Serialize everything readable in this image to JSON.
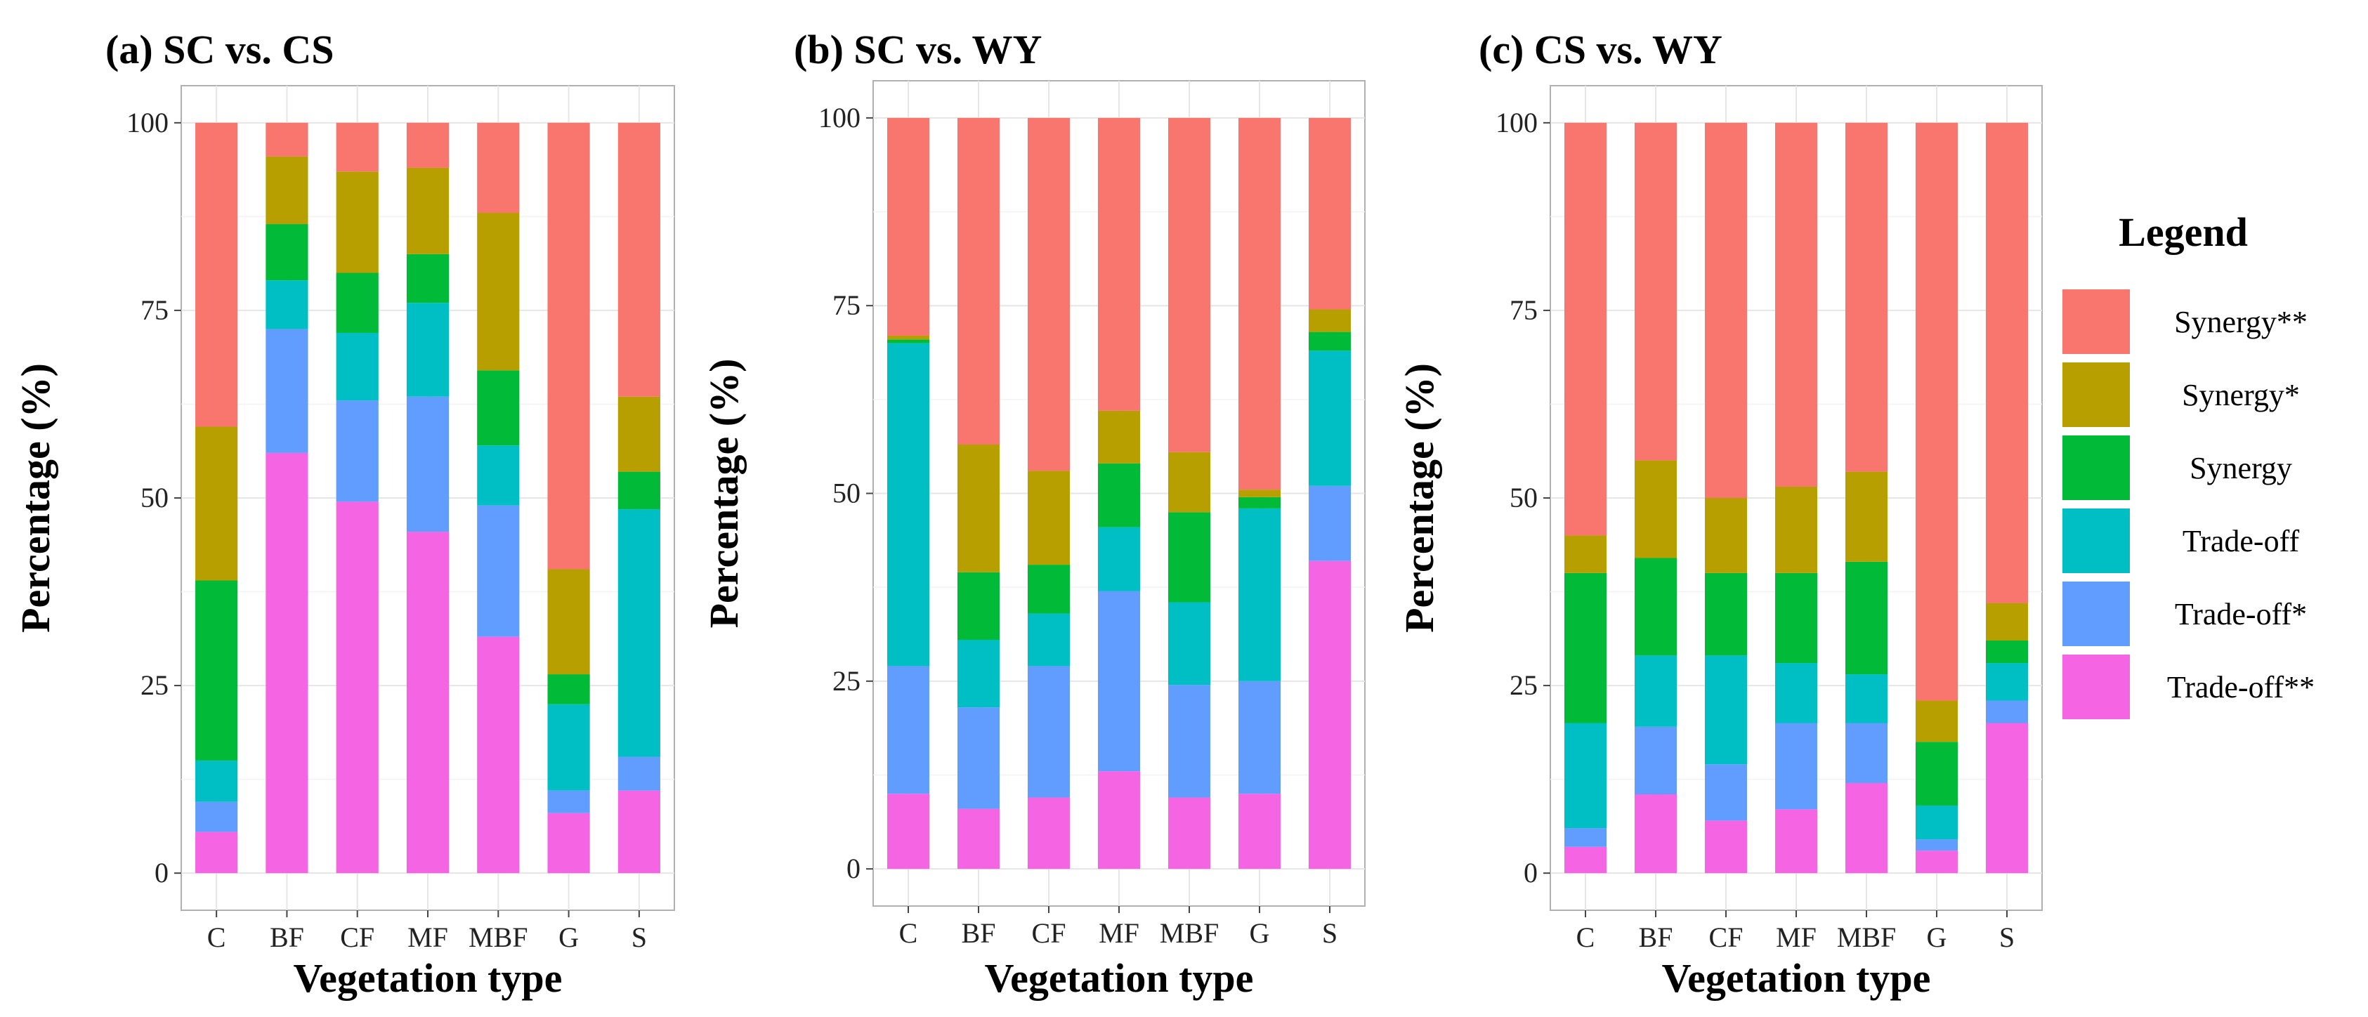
{
  "legend": {
    "title": "Legend",
    "entries": [
      "Synergy**",
      "Synergy*",
      "Synergy",
      "Trade-off",
      "Trade-off*",
      "Trade-off**"
    ]
  },
  "colors": {
    "Trade-off**": "#F564E3",
    "Trade-off*": "#619CFF",
    "Trade-off": "#00BFC4",
    "Synergy": "#00BA38",
    "Synergy*": "#B79F00",
    "Synergy**": "#F8766D"
  },
  "chart_data": [
    {
      "type": "bar",
      "stacked": true,
      "title": "(a) SC vs. CS",
      "xlabel": "Vegetation type",
      "ylabel": "Percentage (%)",
      "ylim": [
        0,
        100
      ],
      "yticks": [
        0,
        25,
        50,
        75,
        100
      ],
      "categories": [
        "C",
        "BF",
        "CF",
        "MF",
        "MBF",
        "G",
        "S"
      ],
      "series": [
        {
          "name": "Trade-off**",
          "values": [
            5.5,
            56,
            49.5,
            45.5,
            31.5,
            8,
            11
          ]
        },
        {
          "name": "Trade-off*",
          "values": [
            4,
            16.5,
            13.5,
            18,
            17.5,
            3,
            4.5
          ]
        },
        {
          "name": "Trade-off",
          "values": [
            5.5,
            6.5,
            9,
            12.5,
            8,
            11.5,
            33
          ]
        },
        {
          "name": "Synergy",
          "values": [
            24,
            7.5,
            8,
            6.5,
            10,
            4,
            5
          ]
        },
        {
          "name": "Synergy*",
          "values": [
            20.5,
            9,
            13.5,
            11.5,
            21,
            14,
            10
          ]
        },
        {
          "name": "Synergy**",
          "values": [
            40.5,
            4.5,
            6.5,
            6,
            12,
            59.5,
            36.5
          ]
        }
      ]
    },
    {
      "type": "bar",
      "stacked": true,
      "title": "(b) SC vs. WY",
      "xlabel": "Vegetation type",
      "ylabel": "Percentage (%)",
      "ylim": [
        0,
        100
      ],
      "yticks": [
        0,
        25,
        50,
        75,
        100
      ],
      "categories": [
        "C",
        "BF",
        "CF",
        "MF",
        "MBF",
        "G",
        "S"
      ],
      "series": [
        {
          "name": "Trade-off**",
          "values": [
            10,
            8,
            9.5,
            13,
            9.5,
            10,
            41
          ]
        },
        {
          "name": "Trade-off*",
          "values": [
            17,
            13.5,
            17.5,
            24,
            15,
            15,
            10
          ]
        },
        {
          "name": "Trade-off",
          "values": [
            43,
            9,
            7,
            8.5,
            11,
            23,
            18
          ]
        },
        {
          "name": "Synergy",
          "values": [
            0.5,
            9,
            6.5,
            8.5,
            12,
            1.5,
            2.5
          ]
        },
        {
          "name": "Synergy*",
          "values": [
            0.5,
            17,
            12.5,
            7,
            8,
            1,
            3
          ]
        },
        {
          "name": "Synergy**",
          "values": [
            29,
            43.5,
            47,
            39,
            44.5,
            49.5,
            25.5
          ]
        }
      ]
    },
    {
      "type": "bar",
      "stacked": true,
      "title": "(c) CS vs. WY",
      "xlabel": "Vegetation type",
      "ylabel": "Percentage (%)",
      "ylim": [
        0,
        100
      ],
      "yticks": [
        0,
        25,
        50,
        75,
        100
      ],
      "categories": [
        "C",
        "BF",
        "CF",
        "MF",
        "MBF",
        "G",
        "S"
      ],
      "series": [
        {
          "name": "Trade-off**",
          "values": [
            3.5,
            10.5,
            7,
            8.5,
            12,
            3,
            20
          ]
        },
        {
          "name": "Trade-off*",
          "values": [
            2.5,
            9,
            7.5,
            11.5,
            8,
            1.5,
            3
          ]
        },
        {
          "name": "Trade-off",
          "values": [
            14,
            9.5,
            14.5,
            8,
            6.5,
            4.5,
            5
          ]
        },
        {
          "name": "Synergy",
          "values": [
            20,
            13,
            11,
            12,
            15,
            8.5,
            3
          ]
        },
        {
          "name": "Synergy*",
          "values": [
            5,
            13,
            10,
            11.5,
            12,
            5.5,
            5
          ]
        },
        {
          "name": "Synergy**",
          "values": [
            55,
            45,
            50,
            48.5,
            46.5,
            77,
            64
          ]
        }
      ]
    }
  ]
}
